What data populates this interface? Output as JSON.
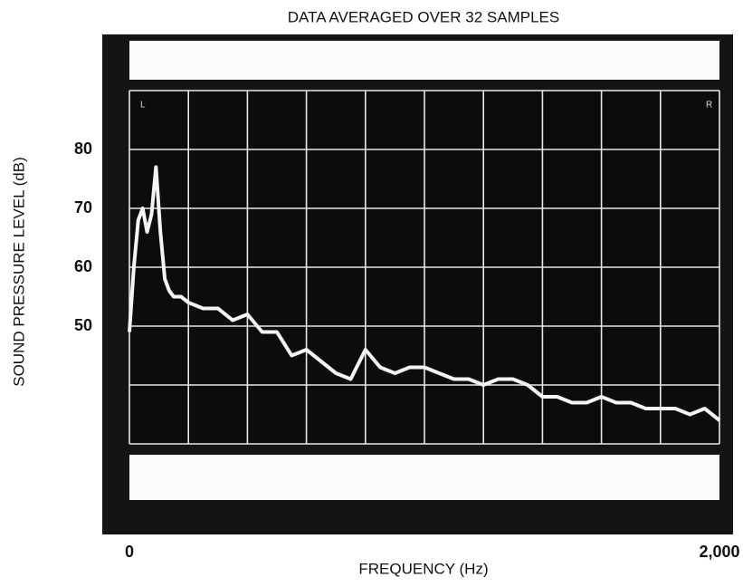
{
  "chart_data": {
    "type": "line",
    "title": "DATA AVERAGED OVER 32 SAMPLES",
    "x_label": "FREQUENCY (Hz)",
    "y_label": "SOUND PRESSURE LEVEL (dB)",
    "annotations": [
      "L",
      "R"
    ],
    "xlim": [
      0,
      2000
    ],
    "xticks": [
      0,
      {
        "value": 2000,
        "label": "2,000"
      }
    ],
    "ylim": [
      30,
      90
    ],
    "yticks": [
      50,
      60,
      70,
      80
    ],
    "grid": true,
    "x": [
      0,
      15,
      30,
      45,
      60,
      75,
      90,
      105,
      120,
      135,
      150,
      175,
      200,
      250,
      300,
      350,
      400,
      450,
      500,
      550,
      600,
      650,
      700,
      750,
      800,
      850,
      900,
      950,
      1000,
      1050,
      1100,
      1150,
      1200,
      1250,
      1300,
      1350,
      1400,
      1450,
      1500,
      1550,
      1600,
      1650,
      1700,
      1750,
      1800,
      1850,
      1900,
      1950,
      2000
    ],
    "series": [
      {
        "color": "#f4f4f4",
        "values": [
          49,
          60,
          68,
          70,
          66,
          69,
          77,
          66,
          58,
          56,
          55,
          55,
          54,
          53,
          53,
          51,
          52,
          49,
          49,
          45,
          46,
          44,
          42,
          41,
          46,
          43,
          42,
          43,
          43,
          42,
          41,
          41,
          40,
          41,
          41,
          40,
          38,
          38,
          37,
          37,
          38,
          37,
          37,
          36,
          36,
          36,
          35,
          36,
          34
        ]
      }
    ]
  }
}
